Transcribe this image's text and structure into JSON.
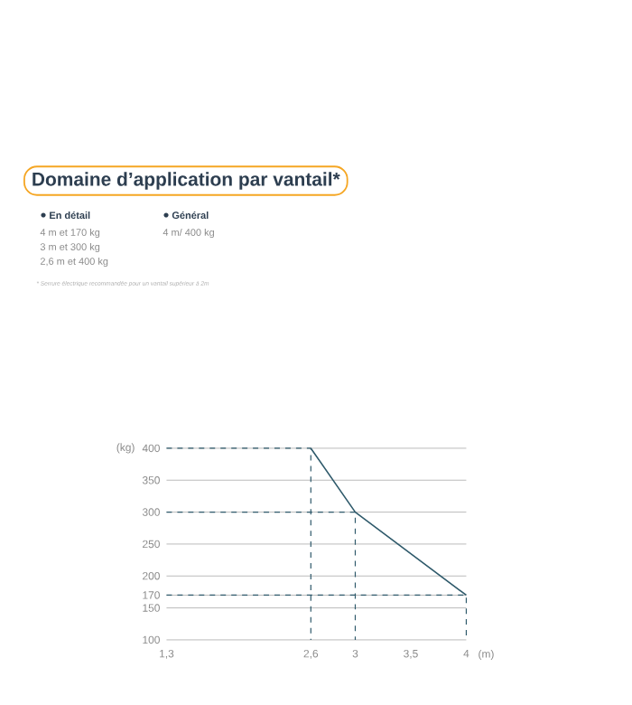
{
  "chart_data": {
    "type": "line",
    "title": "Domaine d’application par vantail*",
    "xlabel": "(m)",
    "ylabel": "(kg)",
    "annotations": [
      "En détail",
      "4 m et 170 kg",
      "3 m et 300 kg",
      "2,6 m et 400 kg",
      "Général",
      "4 m/ 400 kg",
      "* Serrure électrique recommandée pour un vantail supérieur à 2m"
    ],
    "x": [
      2.6,
      3,
      4
    ],
    "series": [
      {
        "color": "#2f5a6b",
        "line_style": "solid",
        "values": [
          400,
          300,
          170
        ]
      },
      {
        "color": "#2f5a6b",
        "line_style": "dashed",
        "x": [
          1.3,
          2.6,
          2.6
        ],
        "values": [
          400,
          400,
          100
        ]
      },
      {
        "color": "#2f5a6b",
        "line_style": "dashed",
        "x": [
          1.3,
          3,
          3
        ],
        "values": [
          300,
          300,
          100
        ]
      },
      {
        "color": "#2f5a6b",
        "line_style": "dashed",
        "x": [
          1.3,
          4,
          4
        ],
        "values": [
          170,
          170,
          100
        ]
      }
    ],
    "marker": "none",
    "grid": "y",
    "xlim": [
      1.3,
      4
    ],
    "xticks": [
      {
        "value": 1.3,
        "label": "1,3"
      },
      {
        "value": 2.6,
        "label": "2,6"
      },
      3,
      {
        "value": 3.5,
        "label": "3,5"
      },
      4
    ],
    "ylim": [
      100,
      400
    ],
    "yticks": [
      100,
      150,
      170,
      200,
      250,
      300,
      350,
      400
    ]
  }
}
